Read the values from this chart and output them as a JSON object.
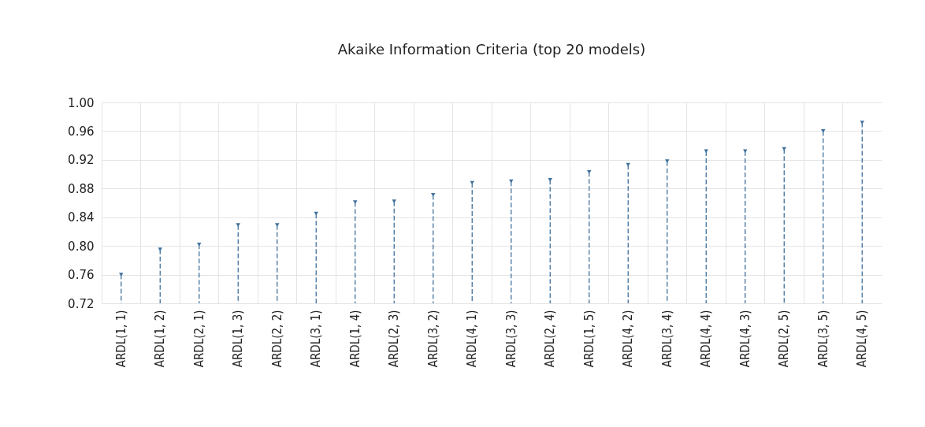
{
  "chart_data": {
    "type": "lollipop",
    "title": "Akaike Information Criteria (top 20 models)",
    "categories": [
      "ARDL(1, 1)",
      "ARDL(1, 2)",
      "ARDL(2, 1)",
      "ARDL(1, 3)",
      "ARDL(2, 2)",
      "ARDL(3, 1)",
      "ARDL(1, 4)",
      "ARDL(2, 3)",
      "ARDL(3, 2)",
      "ARDL(4, 1)",
      "ARDL(3, 3)",
      "ARDL(2, 4)",
      "ARDL(1, 5)",
      "ARDL(4, 2)",
      "ARDL(3, 4)",
      "ARDL(4, 4)",
      "ARDL(4, 3)",
      "ARDL(2, 5)",
      "ARDL(3, 5)",
      "ARDL(4, 5)"
    ],
    "values": [
      0.76,
      0.795,
      0.802,
      0.829,
      0.829,
      0.845,
      0.861,
      0.862,
      0.871,
      0.888,
      0.89,
      0.892,
      0.903,
      0.913,
      0.918,
      0.932,
      0.932,
      0.935,
      0.96,
      0.972
    ],
    "color": "#41719c",
    "ylim": [
      0.72,
      1.0
    ],
    "yticks": [
      {
        "value": 0.72,
        "label": "0.72"
      },
      {
        "value": 0.76,
        "label": "0.76"
      },
      {
        "value": 0.8,
        "label": "0.80"
      },
      {
        "value": 0.84,
        "label": "0.84"
      },
      {
        "value": 0.88,
        "label": "0.88"
      },
      {
        "value": 0.92,
        "label": "0.92"
      },
      {
        "value": 0.96,
        "label": "0.96"
      },
      {
        "value": 1.0,
        "label": "1.00"
      }
    ],
    "grid": true,
    "marker": "triangle",
    "line_style": "dashed"
  }
}
